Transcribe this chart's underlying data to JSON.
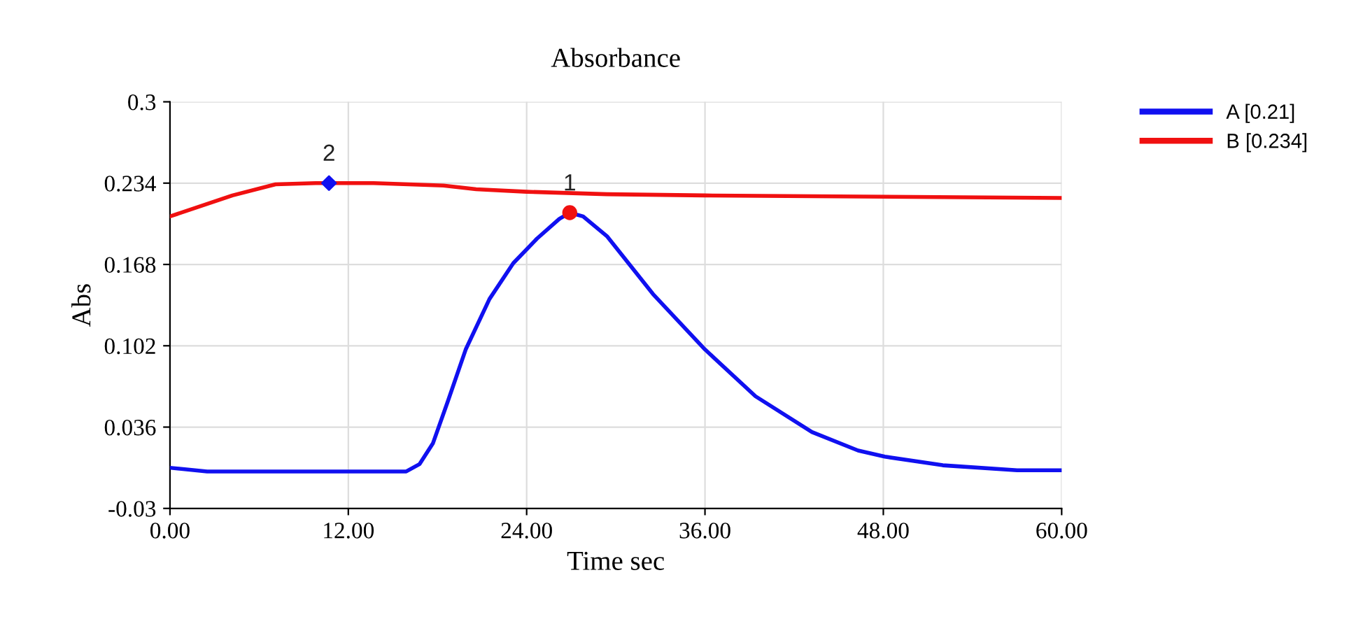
{
  "chart_data": {
    "type": "line",
    "title": "Absorbance",
    "xlabel": "Time sec",
    "ylabel": "Abs",
    "xlim": [
      0,
      60
    ],
    "xticks": [
      {
        "value": 0,
        "label": "0.00"
      },
      {
        "value": 12,
        "label": "12.00"
      },
      {
        "value": 24,
        "label": "24.00"
      },
      {
        "value": 36,
        "label": "36.00"
      },
      {
        "value": 48,
        "label": "48.00"
      },
      {
        "value": 60,
        "label": "60.00"
      }
    ],
    "ylim": [
      -0.03,
      0.3
    ],
    "yticks": [
      -0.03,
      0.036,
      0.102,
      0.168,
      0.234,
      0.3
    ],
    "grid": true,
    "legend": "top right",
    "marker": "none",
    "line_style": "solid",
    "series": [
      {
        "name": "A [0.21]",
        "color": "#1010f0",
        "x": [
          0,
          2.5,
          14.3,
          15.9,
          16.8,
          17.7,
          18.7,
          19.9,
          21.5,
          23.1,
          24.7,
          26.2,
          26.9,
          27.8,
          29.4,
          32.5,
          36.0,
          39.4,
          43.2,
          46.3,
          48.1,
          52.0,
          57.0,
          60
        ],
        "values": [
          0.003,
          0.0,
          0.0,
          0.0,
          0.006,
          0.023,
          0.057,
          0.099,
          0.14,
          0.169,
          0.189,
          0.205,
          0.21,
          0.207,
          0.191,
          0.144,
          0.099,
          0.061,
          0.032,
          0.017,
          0.012,
          0.005,
          0.001,
          0.001
        ]
      },
      {
        "name": "B [0.234]",
        "color": "#f01010",
        "x": [
          0,
          4.2,
          7.1,
          9.8,
          13.7,
          18.4,
          20.6,
          24.0,
          29.4,
          36.0,
          60
        ],
        "values": [
          0.207,
          0.224,
          0.233,
          0.234,
          0.234,
          0.232,
          0.229,
          0.227,
          0.225,
          0.224,
          0.222
        ]
      },
      {
        "type": "scatter",
        "color": "#1010f0",
        "marker": "diamond",
        "x": [
          10.7
        ],
        "values": [
          0.234
        ]
      },
      {
        "type": "scatter",
        "color": "#f01010",
        "marker": "circle",
        "x": [
          26.9
        ],
        "values": [
          0.21
        ]
      }
    ],
    "annotations": [
      {
        "text": "2",
        "x": 10.7,
        "y": 0.234
      },
      {
        "text": "1",
        "x": 26.9,
        "y": 0.21
      }
    ]
  }
}
